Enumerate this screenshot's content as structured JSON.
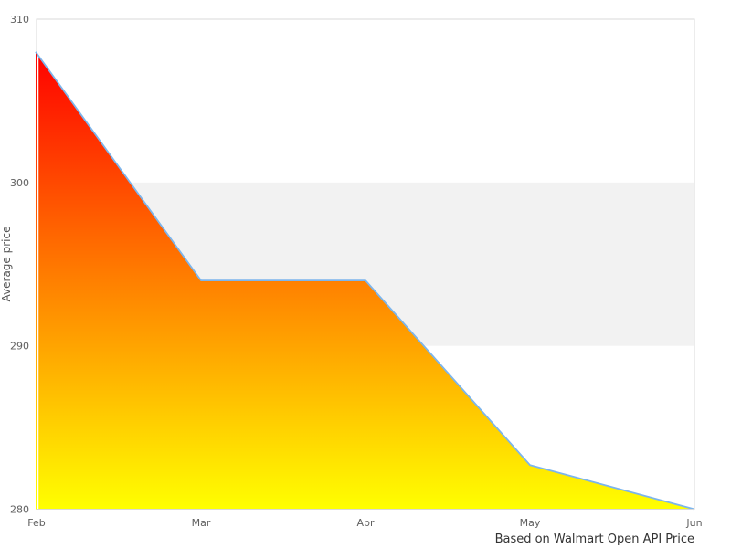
{
  "chart_data": {
    "type": "area",
    "title": "",
    "categories": [
      "Feb",
      "Mar",
      "Apr",
      "May",
      "Jun"
    ],
    "series": [
      {
        "name": "Average price",
        "values": [
          308,
          294,
          294,
          282.7,
          280
        ]
      }
    ],
    "values": [
      308,
      294,
      294,
      282.7,
      280
    ],
    "xlabel": "",
    "ylabel": "Average price",
    "ylim": [
      280,
      310
    ],
    "yticks": [
      310,
      300,
      290,
      280
    ],
    "plot_band": {
      "from": 290,
      "to": 300,
      "color": "#f2f2f2"
    },
    "line_color": "#7cb5ec",
    "area_gradient": {
      "top": "#ff0000",
      "bottom": "#ffff00"
    },
    "grid": false,
    "legend": false,
    "caption": "Based on Walmart Open API Price"
  },
  "colors": {
    "border": "#d8d8d8",
    "tick_text": "#606060",
    "axis_title_text": "#555555",
    "caption_text": "#333333",
    "background": "#ffffff"
  }
}
